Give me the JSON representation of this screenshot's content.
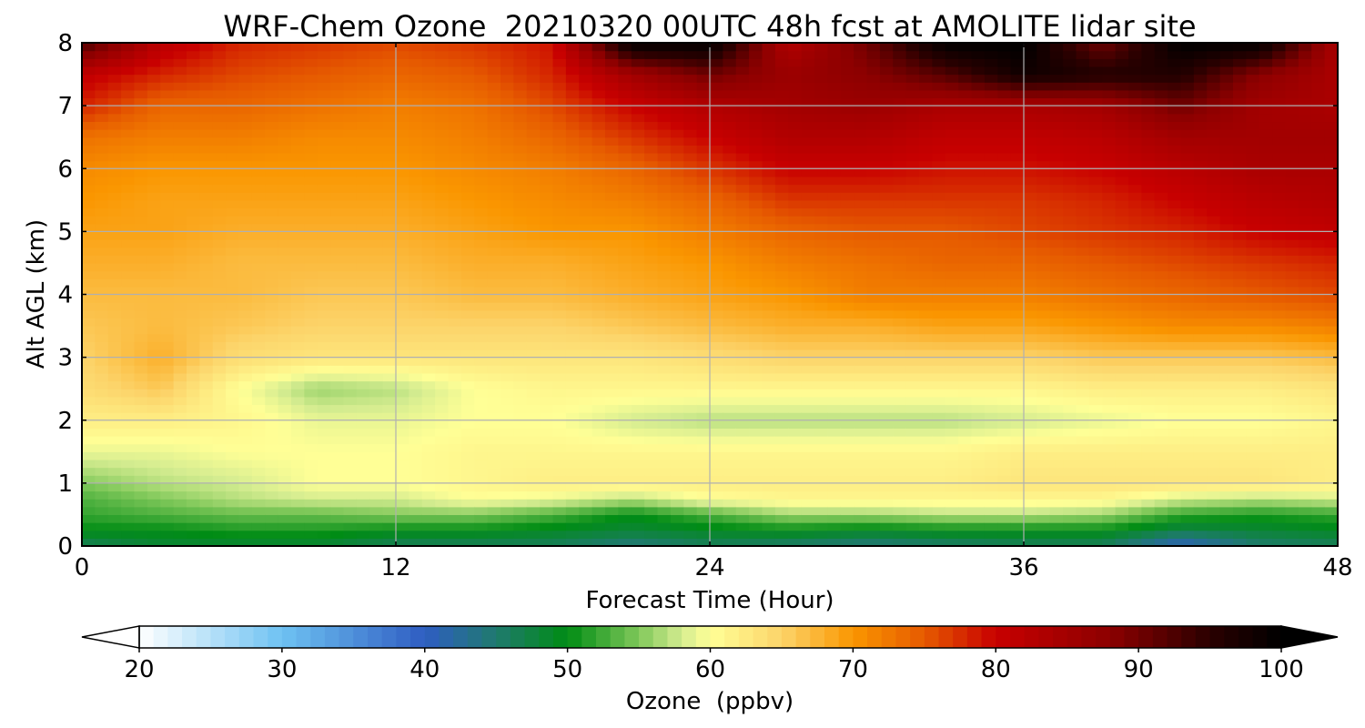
{
  "chart_data": {
    "type": "heatmap",
    "title": "WRF-Chem Ozone  20210320 00UTC 48h fcst at AMOLITE lidar site",
    "xlabel": "Forecast Time (Hour)",
    "ylabel": "Alt AGL (km)",
    "xlim": [
      0,
      48
    ],
    "ylim": [
      0,
      8
    ],
    "xticks": [
      0,
      12,
      24,
      36,
      48
    ],
    "yticks": [
      0,
      1,
      2,
      3,
      4,
      5,
      6,
      7,
      8
    ],
    "grid": true,
    "x_hours": [
      0,
      3,
      6,
      9,
      12,
      15,
      18,
      21,
      24,
      27,
      30,
      33,
      36,
      39,
      42,
      45,
      48
    ],
    "y_km": [
      0,
      0.25,
      0.5,
      0.75,
      1,
      1.5,
      2,
      2.5,
      3,
      3.5,
      4,
      4.5,
      5,
      5.5,
      6,
      6.5,
      7,
      7.5,
      8
    ],
    "ozone_ppbv": [
      [
        46,
        48,
        48,
        48,
        46,
        46,
        46,
        44,
        46,
        45,
        44,
        45,
        46,
        46,
        40,
        45,
        46
      ],
      [
        50,
        50,
        51,
        51,
        50,
        50,
        49,
        48,
        49,
        50,
        49,
        50,
        50,
        50,
        47,
        48,
        49
      ],
      [
        52,
        53,
        54,
        54,
        55,
        55,
        53,
        50,
        53,
        56,
        56,
        57,
        57,
        56,
        52,
        51,
        52
      ],
      [
        53,
        55,
        57,
        58,
        58,
        60,
        59,
        57,
        60,
        61,
        61,
        61,
        61,
        61,
        58,
        57,
        58
      ],
      [
        55,
        57,
        58,
        60,
        60,
        61,
        62,
        62,
        62,
        62,
        62,
        62,
        63,
        63,
        63,
        63,
        62
      ],
      [
        59,
        59,
        60,
        60,
        60,
        61,
        61,
        61,
        61,
        61,
        61,
        61,
        62,
        62,
        62,
        62,
        62
      ],
      [
        62,
        62,
        61,
        59,
        59,
        60,
        60,
        58,
        57,
        57,
        57,
        57,
        58,
        59,
        60,
        60,
        61
      ],
      [
        64,
        66,
        60,
        56,
        57,
        60,
        61,
        61,
        61,
        61,
        61,
        61,
        61,
        62,
        62,
        62,
        63
      ],
      [
        65,
        68,
        64,
        63,
        63,
        63,
        63,
        63,
        64,
        65,
        65,
        65,
        65,
        66,
        66,
        66,
        67
      ],
      [
        66,
        67,
        66,
        65,
        65,
        65,
        65,
        66,
        67,
        68,
        68,
        69,
        69,
        70,
        71,
        71,
        72
      ],
      [
        67,
        67,
        67,
        66,
        66,
        67,
        67,
        68,
        69,
        70,
        72,
        72,
        72,
        73,
        74,
        75,
        76
      ],
      [
        68,
        68,
        67,
        67,
        67,
        68,
        68,
        69,
        70,
        72,
        73,
        74,
        74,
        75,
        76,
        77,
        78
      ],
      [
        69,
        69,
        68,
        68,
        68,
        69,
        70,
        70,
        72,
        74,
        75,
        75,
        76,
        77,
        78,
        80,
        81
      ],
      [
        70,
        69,
        69,
        69,
        69,
        70,
        71,
        72,
        74,
        77,
        77,
        77,
        77,
        78,
        80,
        82,
        83
      ],
      [
        71,
        70,
        70,
        70,
        70,
        71,
        72,
        74,
        77,
        80,
        80,
        79,
        79,
        80,
        82,
        84,
        84
      ],
      [
        73,
        72,
        72,
        71,
        71,
        72,
        74,
        77,
        80,
        83,
        83,
        81,
        81,
        82,
        85,
        85,
        85
      ],
      [
        78,
        74,
        74,
        73,
        72,
        73,
        76,
        80,
        83,
        85,
        86,
        84,
        84,
        85,
        90,
        85,
        84
      ],
      [
        81,
        78,
        76,
        75,
        74,
        75,
        78,
        85,
        90,
        86,
        88,
        92,
        98,
        96,
        96,
        88,
        84
      ],
      [
        93,
        82,
        78,
        77,
        76,
        77,
        79,
        100,
        100,
        83,
        90,
        100,
        100,
        90,
        100,
        100,
        84
      ]
    ],
    "colorbar": {
      "label": "Ozone  (ppbv)",
      "min": 20,
      "max": 100,
      "ticks": [
        20,
        30,
        40,
        50,
        60,
        70,
        80,
        90,
        100
      ],
      "extend": "both",
      "color_stops": [
        {
          "v": 20,
          "c": "#ffffff"
        },
        {
          "v": 30,
          "c": "#6ec2f2"
        },
        {
          "v": 40,
          "c": "#2f5dc2"
        },
        {
          "v": 45,
          "c": "#1f7a6e"
        },
        {
          "v": 50,
          "c": "#008c14"
        },
        {
          "v": 55,
          "c": "#80c85a"
        },
        {
          "v": 58,
          "c": "#d4ec90"
        },
        {
          "v": 60,
          "c": "#ffff96"
        },
        {
          "v": 65,
          "c": "#fcd46a"
        },
        {
          "v": 70,
          "c": "#fa9600"
        },
        {
          "v": 75,
          "c": "#e65a00"
        },
        {
          "v": 80,
          "c": "#c80000"
        },
        {
          "v": 88,
          "c": "#8c0000"
        },
        {
          "v": 95,
          "c": "#2a0000"
        },
        {
          "v": 100,
          "c": "#000000"
        }
      ]
    }
  }
}
